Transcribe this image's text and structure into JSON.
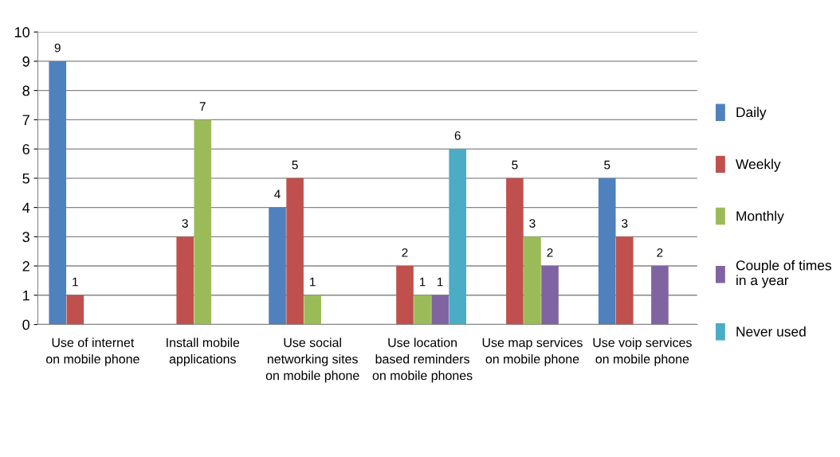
{
  "chart_data": {
    "type": "bar",
    "categories": [
      "Use of internet\non mobile phone",
      "Install mobile\napplications",
      "Use social\nnetworking sites\non mobile phone",
      "Use location\nbased reminders\non mobile phones",
      "Use map services\non mobile phone",
      "Use voip services\non mobile phone"
    ],
    "series": [
      {
        "name": "Daily",
        "color": "#4f81bd",
        "values": [
          9,
          null,
          4,
          null,
          null,
          5
        ]
      },
      {
        "name": "Weekly",
        "color": "#c0504d",
        "values": [
          1,
          3,
          5,
          2,
          5,
          3
        ]
      },
      {
        "name": "Monthly",
        "color": "#9bbb59",
        "values": [
          null,
          7,
          1,
          1,
          3,
          null
        ]
      },
      {
        "name": "Couple of times\nin a year",
        "color": "#8064a2",
        "values": [
          null,
          null,
          null,
          1,
          2,
          2
        ]
      },
      {
        "name": "Never used",
        "color": "#4bacc6",
        "values": [
          null,
          null,
          null,
          6,
          null,
          null
        ]
      }
    ],
    "ylim": [
      0,
      10
    ],
    "yticks": [
      0,
      1,
      2,
      3,
      4,
      5,
      6,
      7,
      8,
      9,
      10
    ],
    "grid": "y",
    "legend": "right",
    "data_labels": true
  }
}
